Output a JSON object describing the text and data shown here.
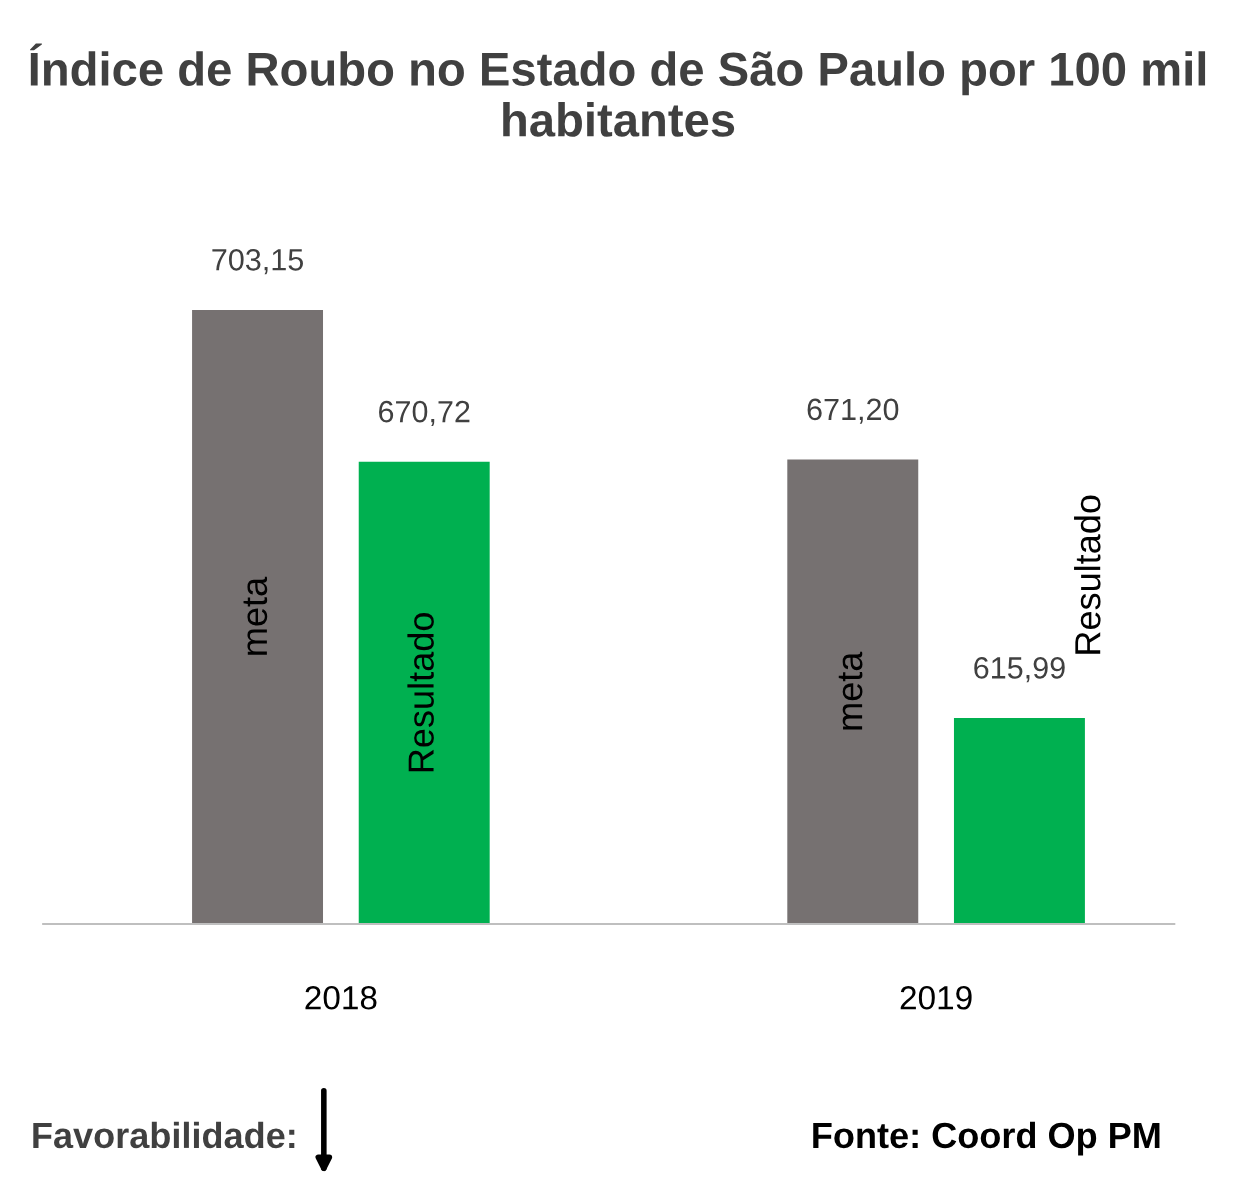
{
  "chart_data": {
    "type": "bar",
    "title": "Índice de Roubo no Estado de São Paulo por 100 mil habitantes",
    "categories": [
      "2018",
      "2019"
    ],
    "series": [
      {
        "name": "meta",
        "color": "#767171",
        "values": [
          703.15,
          671.2
        ],
        "value_labels": [
          "703,15",
          "671,20"
        ]
      },
      {
        "name": "Resultado",
        "color": "#00b050",
        "values": [
          670.72,
          615.99
        ],
        "value_labels": [
          "670,72",
          "615,99"
        ]
      }
    ],
    "ylim": [
      572,
      703.15
    ],
    "tick_labels": "x",
    "grid": false,
    "legend": false,
    "annotations": [
      "Favorabilidade:",
      "Fonte: Coord Op PM"
    ]
  }
}
